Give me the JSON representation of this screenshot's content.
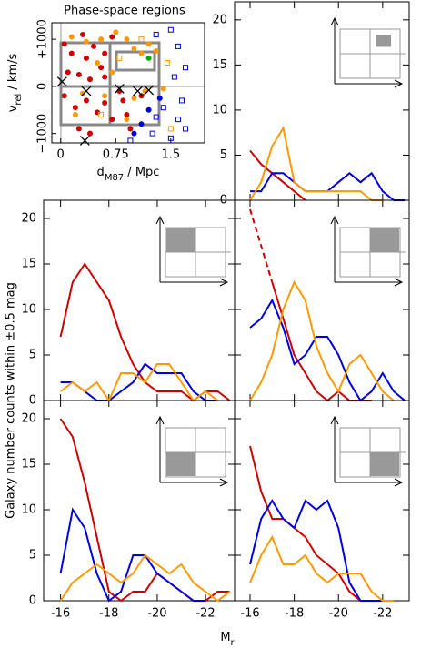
{
  "figure": {
    "ylabel": "Galaxy  number counts within ±0.5 mag",
    "xlabel": {
      "main": "M",
      "sub": "r"
    }
  },
  "chart_data": [
    {
      "type": "scatter",
      "title": "Phase-space regions",
      "xlabel": {
        "main": "d",
        "sub": "M87",
        "rest": " / Mpc"
      },
      "ylabel": {
        "main": "v",
        "sub": "rel",
        "rest": " / km/s"
      },
      "xlim": [
        -0.12,
        1.96
      ],
      "ylim": [
        -1200,
        1350
      ],
      "xticks": [
        0,
        0.75,
        1.5
      ],
      "yticks": [
        {
          "value": -1000,
          "label": "−1000"
        },
        0,
        {
          "value": 1000,
          "label": "+1000"
        }
      ],
      "series": [
        {
          "marker": "circle",
          "filled": true,
          "color": "#cc0000",
          "x": [
            0.05,
            0.15,
            0.3,
            0.35,
            0.45,
            0.55,
            0.6,
            0.1,
            0.25,
            0.4,
            0.05,
            0.2,
            0.35,
            0.5,
            0.6,
            0.7,
            0.25,
            0.4,
            0.85,
            0.9,
            0.95,
            0.8,
            1.1,
            0.6,
            0.7
          ],
          "y": [
            900,
            700,
            1100,
            600,
            850,
            400,
            200,
            300,
            250,
            150,
            -200,
            -450,
            -300,
            -550,
            -350,
            -700,
            -900,
            -1000,
            -300,
            -600,
            -900,
            -100,
            -200,
            700,
            1050
          ]
        },
        {
          "marker": "circle",
          "filled": true,
          "color": "#ff9900",
          "x": [
            0.15,
            0.35,
            0.55,
            0.75,
            0.9,
            1.0,
            1.1,
            1.2,
            1.3,
            0.5,
            0.7,
            0.3,
            0.6,
            1.0,
            1.15,
            1.4,
            0.9,
            0.2
          ],
          "y": [
            1050,
            950,
            1000,
            1150,
            1000,
            800,
            700,
            900,
            750,
            500,
            300,
            -150,
            -200,
            -250,
            -100,
            -50,
            -700,
            -600
          ]
        },
        {
          "marker": "circle",
          "filled": true,
          "color": "#0000dd",
          "x": [
            1.2,
            1.1,
            1.35,
            1.0
          ],
          "y": [
            -500,
            -800,
            -250,
            -1000
          ]
        },
        {
          "marker": "circle",
          "filled": true,
          "color": "#00aa00",
          "x": [
            1.2
          ],
          "y": [
            600
          ]
        },
        {
          "marker": "square",
          "filled": false,
          "color": "#0000dd",
          "x": [
            1.5,
            1.6,
            1.3,
            1.7,
            1.55,
            1.4,
            1.6,
            1.7,
            1.25,
            1.5,
            0.95,
            1.65,
            1.3
          ],
          "y": [
            1200,
            850,
            1100,
            400,
            200,
            -450,
            -700,
            -900,
            -1000,
            -1100,
            -1150,
            -300,
            -650
          ]
        },
        {
          "marker": "square",
          "filled": false,
          "color": "#ff9900",
          "x": [
            0.55,
            1.1,
            0.8,
            1.45,
            1.5
          ],
          "y": [
            -600,
            1000,
            600,
            500,
            -900
          ]
        },
        {
          "marker": "cross",
          "filled": false,
          "color": "#000000",
          "x": [
            0.02,
            0.35,
            0.8,
            1.05,
            1.2,
            0.33
          ],
          "y": [
            100,
            -100,
            -50,
            -100,
            -80,
            -1150
          ]
        }
      ]
    },
    {
      "type": "histline",
      "xlim": [
        -15.3,
        -23.2
      ],
      "ylim": [
        0,
        22
      ],
      "xticks": [
        -16,
        -18,
        -20,
        -22
      ],
      "yticks": [
        0,
        5,
        10,
        15,
        20
      ],
      "x": [
        -16,
        -16.5,
        -17,
        -17.5,
        -18,
        -18.5,
        -19,
        -19.5,
        -20,
        -20.5,
        -21,
        -21.5,
        -22,
        -22.5,
        -23
      ],
      "series": [
        {
          "color": "#cc0000",
          "values": [
            5.5,
            4,
            3,
            2,
            1,
            0,
            null,
            null,
            null,
            null,
            null,
            null,
            null,
            null,
            null
          ]
        },
        {
          "color": "#0000dd",
          "values": [
            1,
            1,
            3,
            3,
            2,
            1,
            1,
            1,
            2,
            3,
            2,
            3,
            1,
            0,
            0
          ]
        },
        {
          "color": "#ff9900",
          "values": [
            0,
            2,
            6,
            8,
            2,
            1,
            1,
            1,
            1,
            1,
            1,
            0,
            0,
            null,
            null
          ]
        }
      ]
    },
    {
      "type": "histline",
      "xlim": [
        -15.3,
        -23.2
      ],
      "ylim": [
        0,
        22
      ],
      "xticks": [
        -16,
        -18,
        -20,
        -22
      ],
      "yticks": [
        0,
        5,
        10,
        15,
        20
      ],
      "x": [
        -16,
        -16.5,
        -17,
        -17.5,
        -18,
        -18.5,
        -19,
        -19.5,
        -20,
        -20.5,
        -21,
        -21.5,
        -22,
        -22.5,
        -23
      ],
      "series": [
        {
          "color": "#cc0000",
          "values": [
            7,
            13,
            15,
            13,
            11,
            7,
            4,
            2,
            1,
            1,
            1,
            0,
            1,
            1,
            0
          ]
        },
        {
          "color": "#0000dd",
          "values": [
            2,
            2,
            1,
            0,
            0,
            1,
            2,
            4,
            3,
            3,
            3,
            1,
            0,
            0,
            null
          ]
        },
        {
          "color": "#ff9900",
          "values": [
            1,
            2,
            1,
            2,
            0,
            3,
            3,
            2,
            4,
            4,
            2,
            0,
            1,
            0,
            null
          ]
        }
      ]
    },
    {
      "type": "histline",
      "xlim": [
        -15.3,
        -23.2
      ],
      "ylim": [
        0,
        22
      ],
      "xticks": [
        -16,
        -18,
        -20,
        -22
      ],
      "yticks": [
        0,
        5,
        10,
        15,
        20
      ],
      "x": [
        -16,
        -16.5,
        -17,
        -17.5,
        -18,
        -18.5,
        -19,
        -19.5,
        -20,
        -20.5,
        -21,
        -21.5,
        -22,
        -22.5,
        -23
      ],
      "series": [
        {
          "color": "#cc0000",
          "dash": true,
          "values": [
            21,
            17,
            13,
            null,
            null,
            null,
            null,
            null,
            null,
            null,
            null,
            null,
            null,
            null,
            null
          ]
        },
        {
          "color": "#cc0000",
          "values": [
            null,
            null,
            13,
            9,
            5,
            3,
            1,
            0,
            1,
            0,
            0,
            0,
            null,
            null,
            null
          ]
        },
        {
          "color": "#0000dd",
          "values": [
            8,
            9,
            11,
            8,
            4,
            5,
            7,
            7,
            5,
            2,
            0,
            1,
            3,
            1,
            0
          ]
        },
        {
          "color": "#ff9900",
          "values": [
            0,
            2,
            5,
            10,
            13,
            11,
            6,
            3,
            1,
            4,
            5,
            3,
            1,
            0,
            null
          ]
        }
      ]
    },
    {
      "type": "histline",
      "xlim": [
        -15.3,
        -23.2
      ],
      "ylim": [
        0,
        22
      ],
      "xticks": [
        -16,
        -18,
        -20,
        -22
      ],
      "yticks": [
        0,
        5,
        10,
        15,
        20
      ],
      "x": [
        -16,
        -16.5,
        -17,
        -17.5,
        -18,
        -18.5,
        -19,
        -19.5,
        -20,
        -20.5,
        -21,
        -21.5,
        -22,
        -22.5,
        -23
      ],
      "series": [
        {
          "color": "#cc0000",
          "values": [
            20,
            18,
            13,
            7,
            1,
            0,
            1,
            1,
            3,
            2,
            1,
            0,
            0,
            1,
            1
          ]
        },
        {
          "color": "#0000dd",
          "values": [
            3,
            10,
            8,
            3,
            0,
            1,
            5,
            5,
            3,
            2,
            1,
            0,
            0,
            null,
            null
          ]
        },
        {
          "color": "#ff9900",
          "values": [
            0,
            2,
            3,
            4,
            3,
            2,
            3,
            5,
            4,
            3,
            4,
            2,
            1,
            0,
            1
          ]
        }
      ]
    },
    {
      "type": "histline",
      "xlim": [
        -15.3,
        -23.2
      ],
      "ylim": [
        0,
        22
      ],
      "xticks": [
        -16,
        -18,
        -20,
        -22
      ],
      "yticks": [
        0,
        5,
        10,
        15,
        20
      ],
      "x": [
        -16,
        -16.5,
        -17,
        -17.5,
        -18,
        -18.5,
        -19,
        -19.5,
        -20,
        -20.5,
        -21,
        -21.5,
        -22,
        -22.5,
        -23
      ],
      "series": [
        {
          "color": "#cc0000",
          "values": [
            17,
            12,
            9,
            9,
            8,
            7,
            5,
            4,
            3,
            1,
            0,
            0,
            0,
            null,
            null
          ]
        },
        {
          "color": "#0000dd",
          "values": [
            4,
            9,
            11,
            9,
            8,
            11,
            10,
            11,
            8,
            2,
            0,
            0,
            0,
            0,
            null
          ]
        },
        {
          "color": "#ff9900",
          "values": [
            2,
            5,
            7,
            4,
            4,
            5,
            3,
            2,
            3,
            3,
            3,
            1,
            0,
            0,
            null
          ]
        }
      ]
    }
  ]
}
